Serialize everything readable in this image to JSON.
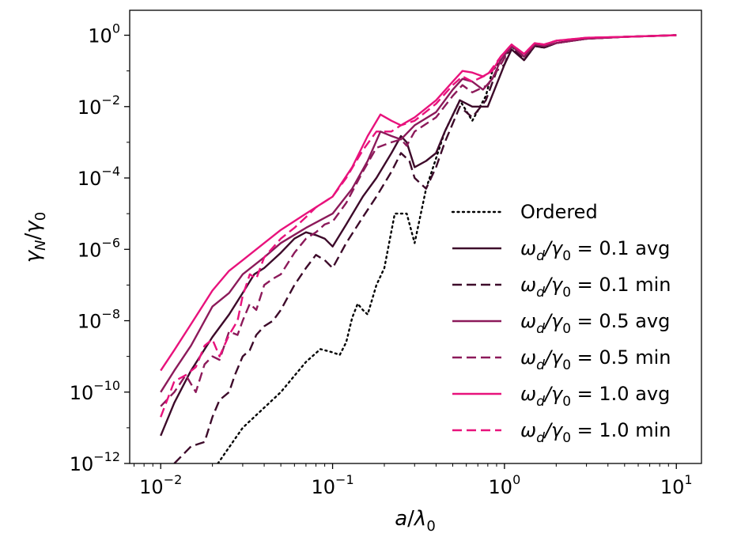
{
  "chart_data": {
    "type": "line",
    "title": "",
    "xscale": "log",
    "yscale": "log",
    "xlim": [
      0.0066,
      14
    ],
    "ylim": [
      1e-12,
      5
    ],
    "xlabel": {
      "base": "a",
      "sub": "",
      "sep": "/",
      "base2": "λ",
      "sub2": "0"
    },
    "ylabel": {
      "base": "γ",
      "sub": "N",
      "sep": "/",
      "base2": "γ",
      "sub2": "0"
    },
    "xticks": [
      {
        "value": 0.01,
        "base": "10",
        "exp": "−2"
      },
      {
        "value": 0.1,
        "base": "10",
        "exp": "−1"
      },
      {
        "value": 1,
        "base": "10",
        "exp": "0"
      },
      {
        "value": 10,
        "base": "10",
        "exp": "1"
      }
    ],
    "yticks": [
      {
        "value": 1e-12,
        "base": "10",
        "exp": "−12"
      },
      {
        "value": 1e-10,
        "base": "10",
        "exp": "−10"
      },
      {
        "value": 1e-08,
        "base": "10",
        "exp": "−8"
      },
      {
        "value": 1e-06,
        "base": "10",
        "exp": "−6"
      },
      {
        "value": 0.0001,
        "base": "10",
        "exp": "−4"
      },
      {
        "value": 0.01,
        "base": "10",
        "exp": "−2"
      },
      {
        "value": 1,
        "base": "10",
        "exp": "0"
      }
    ],
    "legend_position": "center-right",
    "series": [
      {
        "name": "Ordered",
        "label_plain": "Ordered",
        "color": "#000000",
        "dash": "dotted",
        "points": [
          [
            0.0215,
            1e-12
          ],
          [
            0.03,
            1e-11
          ],
          [
            0.05,
            1e-10
          ],
          [
            0.07,
            7e-10
          ],
          [
            0.085,
            1.6e-09
          ],
          [
            0.1,
            1.3e-09
          ],
          [
            0.11,
            1.1e-09
          ],
          [
            0.12,
            2.5e-09
          ],
          [
            0.13,
            1.2e-08
          ],
          [
            0.14,
            3e-08
          ],
          [
            0.15,
            2e-08
          ],
          [
            0.16,
            1.5e-08
          ],
          [
            0.18,
            1e-07
          ],
          [
            0.2,
            3e-07
          ],
          [
            0.23,
            1e-05
          ],
          [
            0.27,
            1e-05
          ],
          [
            0.3,
            1.5e-06
          ],
          [
            0.35,
            5e-05
          ],
          [
            0.45,
            0.002
          ],
          [
            0.55,
            0.015
          ],
          [
            0.65,
            0.004
          ],
          [
            0.78,
            0.02
          ],
          [
            0.85,
            0.1
          ],
          [
            0.95,
            0.2
          ],
          [
            1.0,
            0.25
          ],
          [
            1.1,
            0.5
          ],
          [
            1.3,
            0.2
          ],
          [
            1.5,
            0.5
          ],
          [
            1.7,
            0.45
          ],
          [
            2,
            0.6
          ],
          [
            3,
            0.8
          ],
          [
            5,
            0.9
          ],
          [
            10,
            1
          ]
        ]
      },
      {
        "name": "omega_d 0.1 avg",
        "label_prefix": "ω",
        "label_sub": "d",
        "label_mid": "/γ",
        "label_sub2": "0",
        "label_suffix": " = 0.1 avg",
        "color": "#3d0a2a",
        "dash": "solid",
        "points": [
          [
            0.01,
            6e-12
          ],
          [
            0.012,
            5e-11
          ],
          [
            0.015,
            4e-10
          ],
          [
            0.02,
            3.5e-09
          ],
          [
            0.025,
            1.5e-08
          ],
          [
            0.03,
            6e-08
          ],
          [
            0.035,
            2e-07
          ],
          [
            0.04,
            3e-07
          ],
          [
            0.05,
            8e-07
          ],
          [
            0.06,
            2e-06
          ],
          [
            0.07,
            3e-06
          ],
          [
            0.08,
            2.5e-06
          ],
          [
            0.09,
            2e-06
          ],
          [
            0.1,
            1.2e-06
          ],
          [
            0.12,
            5e-06
          ],
          [
            0.15,
            3e-05
          ],
          [
            0.18,
            0.0001
          ],
          [
            0.22,
            0.0005
          ],
          [
            0.25,
            0.0015
          ],
          [
            0.27,
            0.001
          ],
          [
            0.3,
            0.0002
          ],
          [
            0.35,
            0.0003
          ],
          [
            0.4,
            0.0005
          ],
          [
            0.45,
            0.002
          ],
          [
            0.55,
            0.015
          ],
          [
            0.65,
            0.01
          ],
          [
            0.8,
            0.01
          ],
          [
            1,
            0.15
          ],
          [
            1.1,
            0.4
          ],
          [
            1.3,
            0.2
          ],
          [
            1.5,
            0.5
          ],
          [
            1.7,
            0.45
          ],
          [
            2,
            0.6
          ],
          [
            3,
            0.8
          ],
          [
            5,
            0.9
          ],
          [
            10,
            1
          ]
        ]
      },
      {
        "name": "omega_d 0.1 min",
        "label_prefix": "ω",
        "label_sub": "d",
        "label_mid": "/γ",
        "label_sub2": "0",
        "label_suffix": " = 0.1 min",
        "color": "#3d0a2a",
        "dash": "dashed",
        "points": [
          [
            0.012,
            1e-12
          ],
          [
            0.015,
            3e-12
          ],
          [
            0.018,
            4e-12
          ],
          [
            0.02,
            2e-11
          ],
          [
            0.022,
            6e-11
          ],
          [
            0.025,
            1e-10
          ],
          [
            0.027,
            3e-10
          ],
          [
            0.03,
            1e-09
          ],
          [
            0.033,
            1.5e-09
          ],
          [
            0.036,
            4e-09
          ],
          [
            0.04,
            7e-09
          ],
          [
            0.045,
            1e-08
          ],
          [
            0.05,
            2e-08
          ],
          [
            0.06,
            1e-07
          ],
          [
            0.07,
            3e-07
          ],
          [
            0.08,
            7e-07
          ],
          [
            0.09,
            5e-07
          ],
          [
            0.1,
            3e-07
          ],
          [
            0.12,
            1.5e-06
          ],
          [
            0.15,
            8e-06
          ],
          [
            0.18,
            3e-05
          ],
          [
            0.22,
            0.00015
          ],
          [
            0.25,
            0.0005
          ],
          [
            0.28,
            0.0003
          ],
          [
            0.3,
            0.0001
          ],
          [
            0.35,
            5e-05
          ],
          [
            0.4,
            0.0002
          ],
          [
            0.45,
            0.001
          ],
          [
            0.55,
            0.01
          ],
          [
            0.65,
            0.005
          ],
          [
            0.78,
            0.015
          ],
          [
            0.9,
            0.1
          ],
          [
            1,
            0.15
          ],
          [
            1.1,
            0.5
          ],
          [
            1.3,
            0.2
          ],
          [
            1.5,
            0.5
          ],
          [
            1.7,
            0.45
          ],
          [
            2,
            0.6
          ],
          [
            3,
            0.8
          ],
          [
            5,
            0.9
          ],
          [
            10,
            1
          ]
        ]
      },
      {
        "name": "omega_d 0.5 avg",
        "label_prefix": "ω",
        "label_sub": "d",
        "label_mid": "/γ",
        "label_sub2": "0",
        "label_suffix": " = 0.5 avg",
        "color": "#8c1a5a",
        "dash": "solid",
        "points": [
          [
            0.01,
            1e-10
          ],
          [
            0.012,
            4e-10
          ],
          [
            0.015,
            2e-09
          ],
          [
            0.02,
            2.5e-08
          ],
          [
            0.025,
            6e-08
          ],
          [
            0.03,
            2e-07
          ],
          [
            0.04,
            6e-07
          ],
          [
            0.05,
            1.5e-06
          ],
          [
            0.07,
            4e-06
          ],
          [
            0.1,
            1e-05
          ],
          [
            0.13,
            5e-05
          ],
          [
            0.16,
            0.0003
          ],
          [
            0.19,
            0.002
          ],
          [
            0.22,
            0.0015
          ],
          [
            0.25,
            0.0012
          ],
          [
            0.3,
            0.003
          ],
          [
            0.4,
            0.007
          ],
          [
            0.5,
            0.03
          ],
          [
            0.57,
            0.06
          ],
          [
            0.65,
            0.05
          ],
          [
            0.75,
            0.03
          ],
          [
            0.85,
            0.06
          ],
          [
            0.95,
            0.2
          ],
          [
            1.1,
            0.5
          ],
          [
            1.3,
            0.25
          ],
          [
            1.5,
            0.55
          ],
          [
            1.7,
            0.5
          ],
          [
            2,
            0.6
          ],
          [
            3,
            0.8
          ],
          [
            5,
            0.9
          ],
          [
            10,
            1
          ]
        ]
      },
      {
        "name": "omega_d 0.5 min",
        "label_prefix": "ω",
        "label_sub": "d",
        "label_mid": "/γ",
        "label_sub2": "0",
        "label_suffix": " = 0.5 min",
        "color": "#8c1a5a",
        "dash": "dashed",
        "points": [
          [
            0.01,
            4e-11
          ],
          [
            0.012,
            1e-10
          ],
          [
            0.014,
            3e-10
          ],
          [
            0.016,
            1e-10
          ],
          [
            0.018,
            6e-10
          ],
          [
            0.02,
            1e-09
          ],
          [
            0.022,
            8e-10
          ],
          [
            0.025,
            5e-09
          ],
          [
            0.028,
            4e-09
          ],
          [
            0.03,
            1e-08
          ],
          [
            0.033,
            3e-08
          ],
          [
            0.036,
            2e-08
          ],
          [
            0.04,
            1e-07
          ],
          [
            0.045,
            1.5e-07
          ],
          [
            0.05,
            2e-07
          ],
          [
            0.06,
            8e-07
          ],
          [
            0.07,
            2e-06
          ],
          [
            0.08,
            3e-06
          ],
          [
            0.09,
            5e-06
          ],
          [
            0.1,
            6e-06
          ],
          [
            0.12,
            2e-05
          ],
          [
            0.15,
            0.00015
          ],
          [
            0.18,
            0.0007
          ],
          [
            0.22,
            0.001
          ],
          [
            0.25,
            0.0012
          ],
          [
            0.27,
            0.0008
          ],
          [
            0.3,
            0.002
          ],
          [
            0.4,
            0.005
          ],
          [
            0.5,
            0.02
          ],
          [
            0.57,
            0.04
          ],
          [
            0.65,
            0.025
          ],
          [
            0.8,
            0.04
          ],
          [
            0.95,
            0.15
          ],
          [
            1.1,
            0.5
          ],
          [
            1.3,
            0.25
          ],
          [
            1.5,
            0.55
          ],
          [
            1.7,
            0.5
          ],
          [
            2,
            0.6
          ],
          [
            3,
            0.8
          ],
          [
            5,
            0.9
          ],
          [
            10,
            1
          ]
        ]
      },
      {
        "name": "omega_d 1.0 avg",
        "label_prefix": "ω",
        "label_sub": "d",
        "label_mid": "/γ",
        "label_sub2": "0",
        "label_suffix": " = 1.0 avg",
        "color": "#e8127c",
        "dash": "solid",
        "points": [
          [
            0.01,
            4e-10
          ],
          [
            0.012,
            1.5e-09
          ],
          [
            0.015,
            8e-09
          ],
          [
            0.02,
            7e-08
          ],
          [
            0.025,
            2.5e-07
          ],
          [
            0.03,
            5e-07
          ],
          [
            0.04,
            1.5e-06
          ],
          [
            0.05,
            3.5e-06
          ],
          [
            0.07,
            1e-05
          ],
          [
            0.1,
            3e-05
          ],
          [
            0.13,
            0.0002
          ],
          [
            0.16,
            0.0015
          ],
          [
            0.19,
            0.006
          ],
          [
            0.22,
            0.004
          ],
          [
            0.25,
            0.003
          ],
          [
            0.3,
            0.005
          ],
          [
            0.4,
            0.015
          ],
          [
            0.5,
            0.05
          ],
          [
            0.57,
            0.1
          ],
          [
            0.65,
            0.09
          ],
          [
            0.75,
            0.07
          ],
          [
            0.85,
            0.1
          ],
          [
            0.95,
            0.25
          ],
          [
            1.1,
            0.55
          ],
          [
            1.3,
            0.3
          ],
          [
            1.5,
            0.6
          ],
          [
            1.7,
            0.55
          ],
          [
            2,
            0.7
          ],
          [
            3,
            0.85
          ],
          [
            5,
            0.9
          ],
          [
            10,
            1
          ]
        ]
      },
      {
        "name": "omega_d 1.0 min",
        "label_prefix": "ω",
        "label_sub": "d",
        "label_mid": "/γ",
        "label_sub2": "0",
        "label_suffix": " = 1.0 min",
        "color": "#e8127c",
        "dash": "dashed",
        "points": [
          [
            0.01,
            2e-11
          ],
          [
            0.012,
            2e-10
          ],
          [
            0.014,
            3e-10
          ],
          [
            0.016,
            5e-10
          ],
          [
            0.018,
            2e-09
          ],
          [
            0.02,
            3e-09
          ],
          [
            0.022,
            1e-09
          ],
          [
            0.025,
            4e-09
          ],
          [
            0.028,
            1e-08
          ],
          [
            0.03,
            5e-08
          ],
          [
            0.033,
            2e-07
          ],
          [
            0.036,
            1.5e-07
          ],
          [
            0.04,
            6e-07
          ],
          [
            0.05,
            2e-06
          ],
          [
            0.06,
            4e-06
          ],
          [
            0.07,
            8e-06
          ],
          [
            0.08,
            1.5e-05
          ],
          [
            0.1,
            3e-05
          ],
          [
            0.12,
            0.0001
          ],
          [
            0.15,
            0.0006
          ],
          [
            0.18,
            0.002
          ],
          [
            0.22,
            0.002
          ],
          [
            0.25,
            0.003
          ],
          [
            0.3,
            0.004
          ],
          [
            0.4,
            0.012
          ],
          [
            0.5,
            0.04
          ],
          [
            0.57,
            0.07
          ],
          [
            0.65,
            0.05
          ],
          [
            0.8,
            0.08
          ],
          [
            0.95,
            0.25
          ],
          [
            1.1,
            0.55
          ],
          [
            1.3,
            0.3
          ],
          [
            1.5,
            0.6
          ],
          [
            1.7,
            0.55
          ],
          [
            2,
            0.7
          ],
          [
            3,
            0.85
          ],
          [
            5,
            0.9
          ],
          [
            10,
            1
          ]
        ]
      }
    ]
  }
}
